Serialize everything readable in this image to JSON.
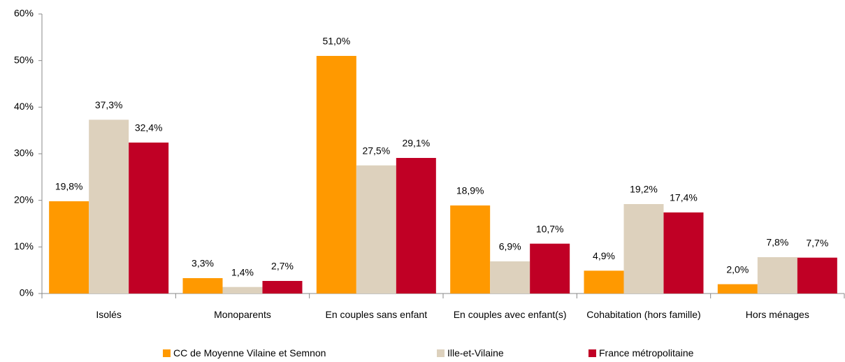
{
  "chart_data": {
    "type": "bar",
    "categories": [
      "Isolés",
      "Monoparents",
      "En couples sans enfant",
      "En couples avec enfant(s)",
      "Cohabitation (hors famille)",
      "Hors ménages"
    ],
    "series": [
      {
        "name": "CC de Moyenne Vilaine et Semnon",
        "color": "#ff9900",
        "values": [
          19.8,
          3.3,
          51.0,
          18.9,
          4.9,
          2.0
        ],
        "value_labels": [
          "19,8%",
          "3,3%",
          "51,0%",
          "18,9%",
          "4,9%",
          "2,0%"
        ]
      },
      {
        "name": "Ille-et-Vilaine",
        "color": "#ddd1bd",
        "values": [
          37.3,
          1.4,
          27.5,
          6.9,
          19.2,
          7.8
        ],
        "value_labels": [
          "37,3%",
          "1,4%",
          "27,5%",
          "6,9%",
          "19,2%",
          "7,8%"
        ]
      },
      {
        "name": "France métropolitaine",
        "color": "#c00025",
        "values": [
          32.4,
          2.7,
          29.1,
          10.7,
          17.4,
          7.7
        ],
        "value_labels": [
          "32,4%",
          "2,7%",
          "29,1%",
          "10,7%",
          "17,4%",
          "7,7%"
        ]
      }
    ],
    "ylim": [
      0,
      60
    ],
    "yticks": [
      {
        "value": 0,
        "label": "0%"
      },
      {
        "value": 10,
        "label": "10%"
      },
      {
        "value": 20,
        "label": "20%"
      },
      {
        "value": 30,
        "label": "30%"
      },
      {
        "value": 40,
        "label": "40%"
      },
      {
        "value": 50,
        "label": "50%"
      },
      {
        "value": 60,
        "label": "60%"
      }
    ],
    "grid": false,
    "legend": "bottom"
  }
}
